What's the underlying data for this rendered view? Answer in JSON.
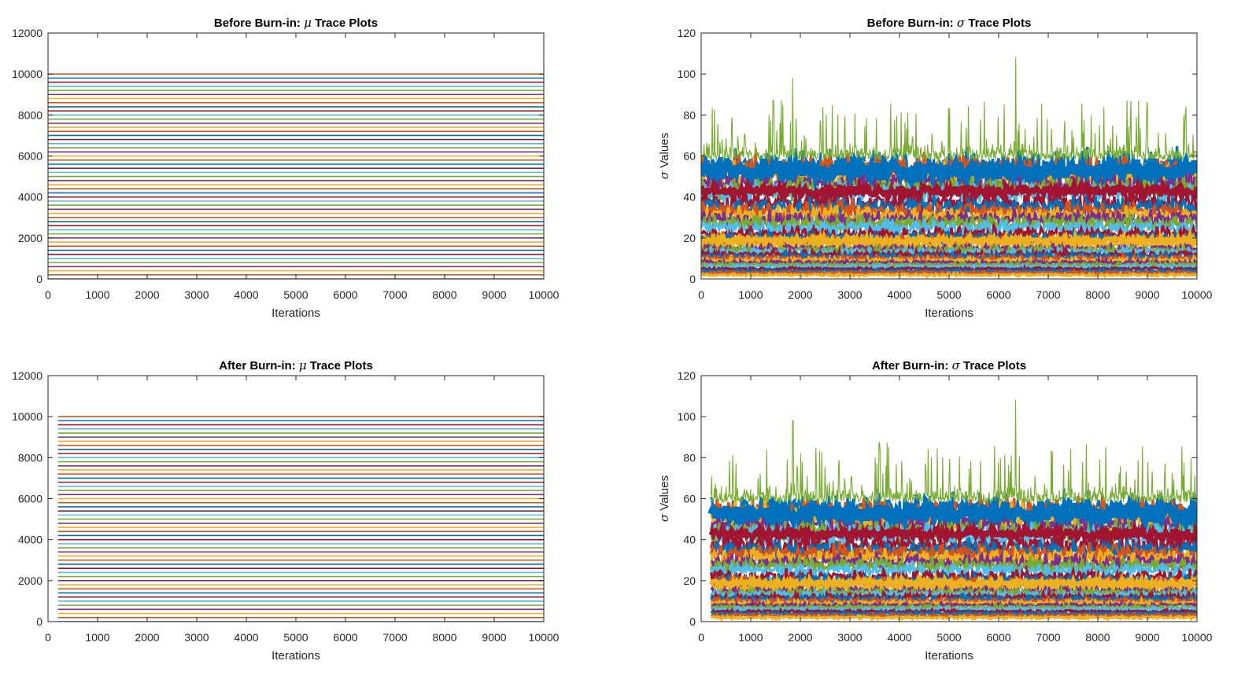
{
  "chart_data": [
    {
      "type": "line",
      "title_prefix": "Before Burn-in: ",
      "title_symbol": "μ",
      "title_suffix": " Trace Plots",
      "xlabel": "Iterations",
      "ylabel": "",
      "xlim": [
        0,
        10000
      ],
      "ylim": [
        0,
        12000
      ],
      "xticks": [
        0,
        1000,
        2000,
        3000,
        4000,
        5000,
        6000,
        7000,
        8000,
        9000,
        10000
      ],
      "yticks": [
        0,
        2000,
        4000,
        6000,
        8000,
        10000,
        12000
      ],
      "x_start": 1,
      "x_end": 10000,
      "series_levels": [
        0,
        200,
        400,
        600,
        800,
        1000,
        1200,
        1400,
        1600,
        1800,
        2000,
        2200,
        2400,
        2600,
        2800,
        3000,
        3200,
        3400,
        3600,
        3800,
        4000,
        4200,
        4400,
        4600,
        4800,
        5000,
        5200,
        5400,
        5600,
        5800,
        6000,
        6200,
        6400,
        6600,
        6800,
        7000,
        7200,
        7400,
        7600,
        7800,
        8000,
        8200,
        8400,
        8600,
        8800,
        9000,
        9200,
        9400,
        9600,
        9800,
        10000
      ],
      "grid": false,
      "legend": "none"
    },
    {
      "type": "line",
      "title_prefix": "Before Burn-in: ",
      "title_symbol": "σ",
      "title_suffix": " Trace Plots",
      "xlabel": "Iterations",
      "ylabel_symbol": "σ",
      "ylabel": " Values",
      "xlim": [
        0,
        10000
      ],
      "ylim": [
        0,
        120
      ],
      "xticks": [
        0,
        1000,
        2000,
        3000,
        4000,
        5000,
        6000,
        7000,
        8000,
        9000,
        10000
      ],
      "yticks": [
        0,
        20,
        40,
        60,
        80,
        100,
        120
      ],
      "x_start": 1,
      "x_end": 10000,
      "series_means": [
        2,
        3,
        4,
        5,
        6,
        7,
        8,
        9,
        10,
        11,
        12,
        13,
        14,
        15,
        17,
        19,
        20,
        22,
        25,
        27,
        29,
        31,
        33,
        35,
        37,
        42,
        44,
        47,
        50,
        53,
        55
      ],
      "noise_series_peak": 108,
      "grid": false,
      "legend": "none"
    },
    {
      "type": "line",
      "title_prefix": "After Burn-in: ",
      "title_symbol": "μ",
      "title_suffix": " Trace Plots",
      "xlabel": "Iterations",
      "ylabel": "",
      "xlim": [
        0,
        10000
      ],
      "ylim": [
        0,
        12000
      ],
      "xticks": [
        0,
        1000,
        2000,
        3000,
        4000,
        5000,
        6000,
        7000,
        8000,
        9000,
        10000
      ],
      "yticks": [
        0,
        2000,
        4000,
        6000,
        8000,
        10000,
        12000
      ],
      "x_start": 200,
      "x_end": 10000,
      "series_levels": [
        0,
        200,
        400,
        600,
        800,
        1000,
        1200,
        1400,
        1600,
        1800,
        2000,
        2200,
        2400,
        2600,
        2800,
        3000,
        3200,
        3400,
        3600,
        3800,
        4000,
        4200,
        4400,
        4600,
        4800,
        5000,
        5200,
        5400,
        5600,
        5800,
        6000,
        6200,
        6400,
        6600,
        6800,
        7000,
        7200,
        7400,
        7600,
        7800,
        8000,
        8200,
        8400,
        8600,
        8800,
        9000,
        9200,
        9400,
        9600,
        9800,
        10000
      ],
      "grid": false,
      "legend": "none"
    },
    {
      "type": "line",
      "title_prefix": "After Burn-in: ",
      "title_symbol": "σ",
      "title_suffix": " Trace Plots",
      "xlabel": "Iterations",
      "ylabel_symbol": "σ",
      "ylabel": " Values",
      "xlim": [
        0,
        10000
      ],
      "ylim": [
        0,
        120
      ],
      "xticks": [
        0,
        1000,
        2000,
        3000,
        4000,
        5000,
        6000,
        7000,
        8000,
        9000,
        10000
      ],
      "yticks": [
        0,
        20,
        40,
        60,
        80,
        100,
        120
      ],
      "x_start": 200,
      "x_end": 10000,
      "series_means": [
        2,
        3,
        4,
        5,
        6,
        7,
        8,
        9,
        10,
        11,
        12,
        13,
        14,
        15,
        17,
        19,
        20,
        22,
        25,
        27,
        29,
        31,
        33,
        35,
        37,
        42,
        44,
        47,
        50,
        53,
        55
      ],
      "noise_series_peak": 108,
      "grid": false,
      "legend": "none"
    }
  ],
  "colors": [
    "#0072BD",
    "#D95319",
    "#EDB120",
    "#7E2F8E",
    "#77AC30",
    "#4DBEEE",
    "#A2142F"
  ]
}
